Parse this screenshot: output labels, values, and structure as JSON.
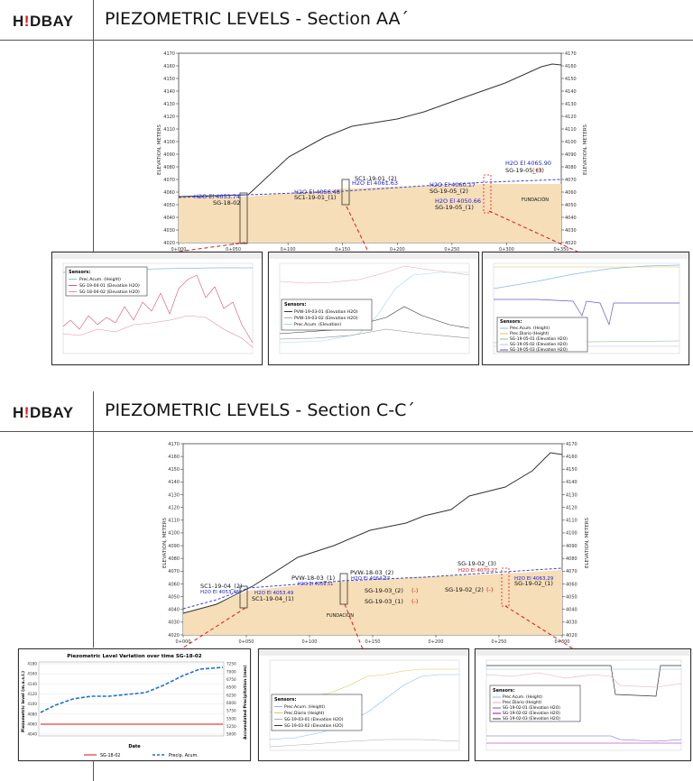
{
  "brand": {
    "logo_prefix": "H",
    "logo_mark": "!",
    "logo_suffix": "DBAY",
    "accent": "#e0161b"
  },
  "sections": [
    {
      "title": "PIEZOMETRIC LEVELS - Section AA´",
      "yaxis_label": "ELEVATION, METERS",
      "x_ticks": [
        "0+000",
        "0+050",
        "0+100",
        "0+150",
        "0+200",
        "0+250",
        "0+300",
        "0+350"
      ],
      "y_ticks": [
        "4170",
        "4160",
        "4150",
        "4140",
        "4130",
        "4120",
        "4110",
        "4100",
        "4090",
        "4080",
        "4070",
        "4060",
        "4050",
        "4040",
        "4030",
        "4020"
      ],
      "annotations": [
        {
          "text": "H2O El 4053.74",
          "color": "#2020d0"
        },
        {
          "text": "SG-18-02",
          "color": "#111"
        },
        {
          "text": "SC1-19-01_(2)",
          "color": "#111"
        },
        {
          "text": "H2O El 4061.63",
          "color": "#2020d0"
        },
        {
          "text": "H2O El 4056.48",
          "color": "#2020d0"
        },
        {
          "text": "SC1-19-01_(1)",
          "color": "#111"
        },
        {
          "text": "H2O El 4065.90",
          "color": "#2020d0"
        },
        {
          "text": "SG-19-05_(3)",
          "color": "#111"
        },
        {
          "text": "(+)",
          "color": "#e0161b"
        },
        {
          "text": "H2O El 4060.17",
          "color": "#2020d0"
        },
        {
          "text": "SG-19-05_(2)",
          "color": "#111"
        },
        {
          "text": "H2O El 4050.66",
          "color": "#2020d0"
        },
        {
          "text": "SG-19-05_(1)",
          "color": "#111"
        },
        {
          "text": "FUNDACIÓN",
          "color": "#111"
        }
      ],
      "panels": [
        {
          "legend_title": "Sensors:",
          "legend": [
            "Prec.Acum. (Height)",
            "SG-19-04-01 (Elevation H2O)",
            "SG-18-04-02 (Elevation H2O)"
          ]
        },
        {
          "legend_title": "Sensors:",
          "legend": [
            "PVW-19-03-01 (Elevation H2O)",
            "PVW-19-03-02 (Elevation H2O)",
            "Prec.Acum. (Elevation)"
          ]
        },
        {
          "legend_title": "Sensors:",
          "legend": [
            "Prec.Acum. (Height)",
            "Prec.Diario (Height)",
            "SG-19-05-01 (Elevation H2O)",
            "SG-19-05-02 (Elevation H2O)",
            "SG-19-05-03 (Elevation H2O)"
          ]
        }
      ]
    },
    {
      "title": "PIEZOMETRIC LEVELS - Section C-C´",
      "yaxis_label": "ELEVATION, METERS",
      "x_ticks": [
        "0+000",
        "0+050",
        "0+100",
        "0+150",
        "0+200",
        "0+250",
        "0+300"
      ],
      "y_ticks": [
        "4170",
        "4160",
        "4150",
        "4140",
        "4130",
        "4120",
        "4110",
        "4100",
        "4090",
        "4080",
        "4070",
        "4060",
        "4050",
        "4040",
        "4030",
        "4020"
      ],
      "annotations": [
        {
          "text": "SC1-19-04_(2)",
          "color": "#111"
        },
        {
          "text": "H2O El 4053.45",
          "color": "#2020d0"
        },
        {
          "text": "H2O El 4053.49",
          "color": "#2020d0"
        },
        {
          "text": "SC1-19-04_(1)",
          "color": "#111"
        },
        {
          "text": "PVW-18-03_(1)",
          "color": "#111"
        },
        {
          "text": "PVW-18-03_(2)",
          "color": "#111"
        },
        {
          "text": "H2O El 4064.37",
          "color": "#2020d0"
        },
        {
          "text": "H2O El 4059.51",
          "color": "#2020d0"
        },
        {
          "text": "SG-19-03_(2)",
          "color": "#111"
        },
        {
          "text": "(-)",
          "color": "#e0161b"
        },
        {
          "text": "SG-19-03_(1)",
          "color": "#111"
        },
        {
          "text": "(-)",
          "color": "#e0161b"
        },
        {
          "text": "FUNDACIÓN",
          "color": "#111"
        },
        {
          "text": "SG-19-02_(3)",
          "color": "#111"
        },
        {
          "text": "H2O El 4070.27",
          "color": "#e0161b"
        },
        {
          "text": "H2O El 4063.29",
          "color": "#2020d0"
        },
        {
          "text": "SG-19-02_(2)",
          "color": "#111"
        },
        {
          "text": "(-)",
          "color": "#e0161b"
        },
        {
          "text": "SG-19-02_(1)",
          "color": "#111"
        }
      ],
      "panels": [
        {
          "title": "Piezometric Level Variation over time SG-18-02",
          "ylabel": "Piezometric level (m.a.s.l.)",
          "y2label": "Accumulated Precipitation (mm)",
          "xlabel": "Date",
          "y_ticks": [
            "4180",
            "4160",
            "4140",
            "4120",
            "4100",
            "4080",
            "4060",
            "4040"
          ],
          "y2_ticks": [
            "7250",
            "7000",
            "6750",
            "6500",
            "6250",
            "6000",
            "5750",
            "5500",
            "5250",
            "5000"
          ],
          "legend": [
            "SG-18-02",
            "Precip. Acum."
          ]
        },
        {
          "legend_title": "Sensors:",
          "legend": [
            "Prec.Acum. (Height)",
            "Prec.Diario (Height)",
            "SG-19-03-01 (Elevation H2O)",
            "SG-19-03-02 (Elevation H2O)"
          ]
        },
        {
          "legend_title": "Sensors:",
          "legend": [
            "Prec.Acum. (Height)",
            "Prec.Diario (Height)",
            "SG-19-02-01 (Elevation H2O)",
            "SG-19-02-02 (Elevation H2O)",
            "SG-19-02-03 (Elevation H2O)"
          ]
        }
      ]
    }
  ]
}
